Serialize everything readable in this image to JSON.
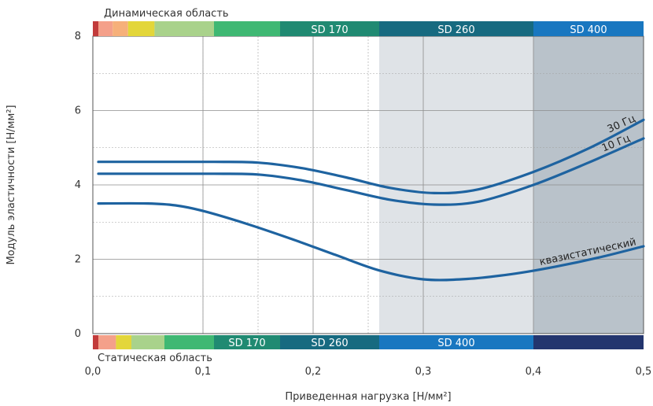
{
  "chart_data": {
    "type": "line",
    "xlabel": "Приведенная нагрузка [Н/мм²]",
    "ylabel": "Модуль эластичности [Н/мм²]",
    "xlim": [
      0,
      0.5
    ],
    "ylim": [
      0,
      8
    ],
    "x_ticks": [
      "0,0",
      "0,1",
      "0,2",
      "0,3",
      "0,4",
      "0,5"
    ],
    "y_ticks": [
      "0",
      "2",
      "4",
      "6",
      "8"
    ],
    "grid": true,
    "top_band_label": "Динамическая область",
    "bottom_band_label": "Статическая область",
    "regions": [
      {
        "from": 0.26,
        "to": 0.4,
        "color": "#dfe3e7"
      },
      {
        "from": 0.4,
        "to": 0.5,
        "color": "#b9c2ca"
      }
    ],
    "top_band": [
      {
        "from": 0.0,
        "to": 0.005,
        "color": "#c23b3b",
        "label": ""
      },
      {
        "from": 0.005,
        "to": 0.018,
        "color": "#f4a08a",
        "label": ""
      },
      {
        "from": 0.018,
        "to": 0.032,
        "color": "#f6b07a",
        "label": ""
      },
      {
        "from": 0.032,
        "to": 0.056,
        "color": "#e3d63a",
        "label": ""
      },
      {
        "from": 0.056,
        "to": 0.11,
        "color": "#a9d28b",
        "label": ""
      },
      {
        "from": 0.11,
        "to": 0.17,
        "color": "#3fb873",
        "label": ""
      },
      {
        "from": 0.17,
        "to": 0.26,
        "color": "#208a72",
        "label": "SD 170"
      },
      {
        "from": 0.26,
        "to": 0.4,
        "color": "#176a80",
        "label": "SD 260"
      },
      {
        "from": 0.4,
        "to": 0.5,
        "color": "#1977c0",
        "label": "SD 400"
      }
    ],
    "bottom_band": [
      {
        "from": 0.0,
        "to": 0.005,
        "color": "#c23b3b",
        "label": ""
      },
      {
        "from": 0.005,
        "to": 0.021,
        "color": "#f4a08a",
        "label": ""
      },
      {
        "from": 0.021,
        "to": 0.035,
        "color": "#e3d63a",
        "label": ""
      },
      {
        "from": 0.035,
        "to": 0.065,
        "color": "#a9d28b",
        "label": ""
      },
      {
        "from": 0.065,
        "to": 0.11,
        "color": "#3fb873",
        "label": ""
      },
      {
        "from": 0.11,
        "to": 0.17,
        "color": "#208a72",
        "label": "SD 170"
      },
      {
        "from": 0.17,
        "to": 0.26,
        "color": "#176a80",
        "label": "SD 260"
      },
      {
        "from": 0.26,
        "to": 0.4,
        "color": "#1977c0",
        "label": "SD 400"
      },
      {
        "from": 0.4,
        "to": 0.5,
        "color": "#23356e",
        "label": ""
      }
    ],
    "series": [
      {
        "name": "30 Гц",
        "color": "#1e63a0",
        "x": [
          0.005,
          0.06,
          0.11,
          0.15,
          0.19,
          0.23,
          0.27,
          0.31,
          0.35,
          0.4,
          0.45,
          0.5
        ],
        "y": [
          4.62,
          4.62,
          4.62,
          4.6,
          4.45,
          4.2,
          3.92,
          3.78,
          3.88,
          4.35,
          4.98,
          5.75
        ]
      },
      {
        "name": "10 Гц",
        "color": "#1e63a0",
        "x": [
          0.005,
          0.06,
          0.11,
          0.15,
          0.19,
          0.23,
          0.27,
          0.31,
          0.35,
          0.4,
          0.45,
          0.5
        ],
        "y": [
          4.3,
          4.3,
          4.3,
          4.28,
          4.12,
          3.86,
          3.6,
          3.47,
          3.55,
          4.0,
          4.6,
          5.25
        ]
      },
      {
        "name": "квазистатический",
        "color": "#1e63a0",
        "x": [
          0.005,
          0.05,
          0.075,
          0.1,
          0.14,
          0.18,
          0.22,
          0.26,
          0.3,
          0.34,
          0.38,
          0.42,
          0.46,
          0.5
        ],
        "y": [
          3.5,
          3.5,
          3.45,
          3.3,
          2.95,
          2.55,
          2.12,
          1.7,
          1.46,
          1.47,
          1.6,
          1.8,
          2.05,
          2.35
        ]
      }
    ]
  }
}
